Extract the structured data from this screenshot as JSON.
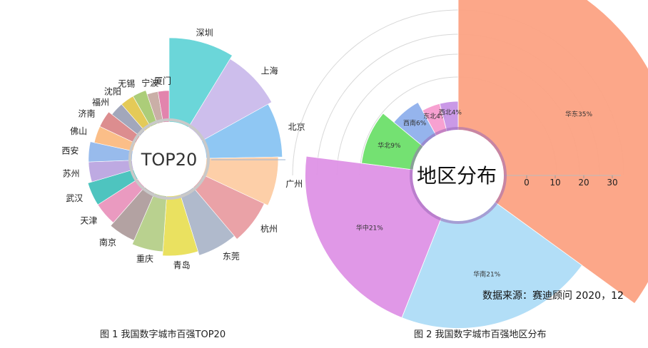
{
  "captions": {
    "figure1": "图 1 我国数字城市百强TOP20",
    "figure2": "图 2 我国数字城市百强地区分布"
  },
  "source_note": "数据来源：赛迪顾问  2020，12",
  "chart_data": [
    {
      "type": "pie",
      "variant": "rose",
      "center_label": "TOP20",
      "categories": [
        "深圳",
        "上海",
        "北京",
        "广州",
        "杭州",
        "东莞",
        "青岛",
        "重庆",
        "南京",
        "天津",
        "武汉",
        "苏州",
        "西安",
        "佛山",
        "济南",
        "福州",
        "沈阳",
        "无锡",
        "宁波",
        "厦门"
      ],
      "values": [
        20,
        19,
        18,
        17,
        16,
        15,
        14,
        13,
        12,
        11,
        11,
        10,
        10,
        9,
        9,
        8,
        8,
        8,
        7,
        7
      ],
      "colors": [
        "#5ed3d6",
        "#c9b8ea",
        "#86c2f2",
        "#fdcba1",
        "#e89aa0",
        "#a9b4c8",
        "#e8de52",
        "#b3cd85",
        "#ad9a9a",
        "#e891bb",
        "#3fbfba",
        "#b8a3e0",
        "#8fb5ea",
        "#fbb87e",
        "#d98386",
        "#9a9fb5",
        "#e2c64a",
        "#a5c96e",
        "#c5a8a0",
        "#e07aa6"
      ]
    },
    {
      "type": "pie",
      "variant": "rose",
      "center_label": "地区分布",
      "categories": [
        "华东",
        "华南",
        "华中",
        "华北",
        "西南",
        "东北",
        "西北"
      ],
      "values": [
        35,
        21,
        21,
        9,
        6,
        4,
        4
      ],
      "labels": [
        "华东35%",
        "华南21%",
        "华中21%",
        "华北9%",
        "西南6%",
        "东北4%",
        "西北4%"
      ],
      "colors": [
        "#fca283",
        "#aedcf7",
        "#de92e6",
        "#6ddf6a",
        "#8fb0ec",
        "#f79ccf",
        "#c794e6"
      ],
      "radial_axis": {
        "ticks": [
          0,
          10,
          20,
          30
        ]
      }
    }
  ]
}
